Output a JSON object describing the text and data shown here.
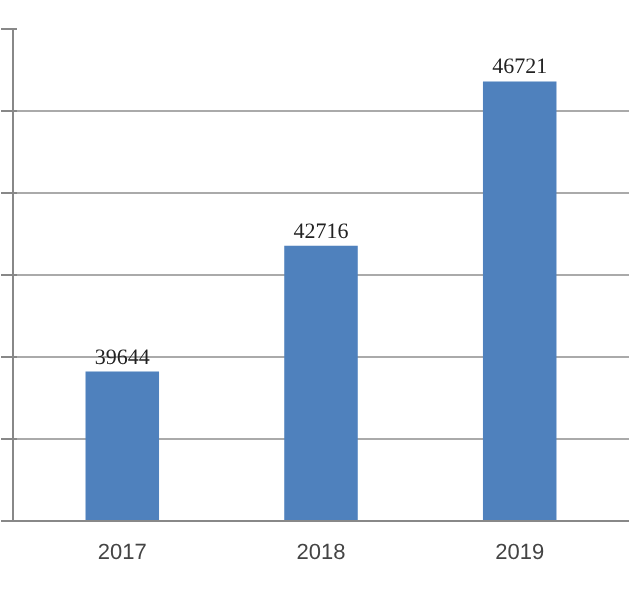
{
  "chart_data": {
    "type": "bar",
    "categories": [
      "2017",
      "2018",
      "2019"
    ],
    "values": [
      39644,
      42716,
      46721
    ],
    "color": "#4f81bd",
    "ylim": [
      36000,
      48000
    ],
    "yticks": [
      {
        "value": 36000,
        "label": null
      },
      {
        "value": 38000,
        "label": null
      },
      {
        "value": 40000,
        "label": null
      },
      {
        "value": 42000,
        "label": null
      },
      {
        "value": 44000,
        "label": null
      },
      {
        "value": 46000,
        "label": null
      },
      {
        "value": 48000,
        "label": null
      }
    ],
    "tick_labels": "x",
    "grid": "y",
    "data_labels": true
  }
}
